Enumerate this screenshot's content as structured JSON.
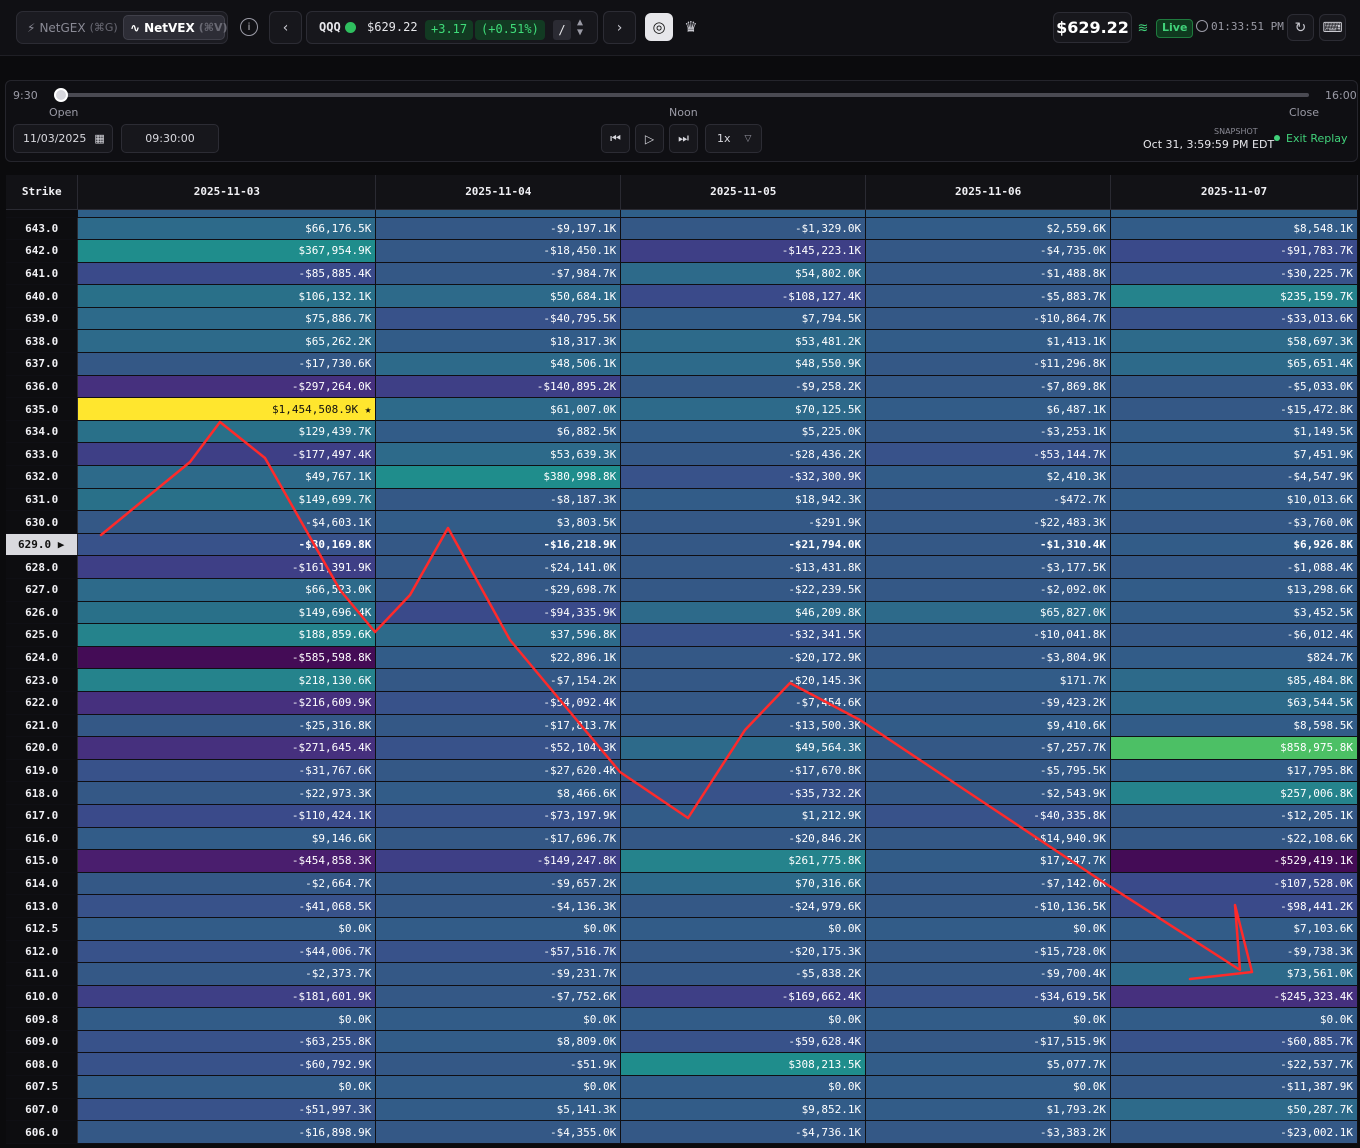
{
  "header": {
    "netgex_label": "NetGEX",
    "netgex_shortcut": "(⌘G)",
    "netvex_label": "NetVEX",
    "netvex_shortcut": "(⌘V)",
    "ticker": {
      "symbol": "QQQ",
      "price": "$629.22",
      "change": "+3.17",
      "change_pct": "(+0.51%)",
      "slash": "/"
    },
    "live_price": "$629.22",
    "live_label": "Live",
    "time": "01:33:51 PM",
    "colors": {
      "positive": "#3fdc79",
      "live": "#41d17a",
      "highlight": "#ffe62e"
    }
  },
  "replay": {
    "start_time": "9:30",
    "end_time": "16:00",
    "open_label": "Open",
    "noon_label": "Noon",
    "close_label": "Close",
    "date": "11/03/2025",
    "time_value": "09:30:00",
    "speed": "1x",
    "snapshot_label": "SNAPSHOT",
    "snapshot_time": "Oct 31, 3:59:59 PM EDT",
    "exit_label": "Exit Replay",
    "progress": 0
  },
  "table": {
    "strike_header": "Strike",
    "columns": [
      "2025-11-03",
      "2025-11-04",
      "2025-11-05",
      "2025-11-06",
      "2025-11-07"
    ],
    "current_strike": "629.0",
    "rows": [
      {
        "strike": "643.0",
        "cells": [
          "$66,176.5K",
          "-$9,197.1K",
          "-$1,329.0K",
          "$2,559.6K",
          "$8,548.1K"
        ]
      },
      {
        "strike": "642.0",
        "cells": [
          "$367,954.9K",
          "-$18,450.1K",
          "-$145,223.1K",
          "-$4,735.0K",
          "-$91,783.7K"
        ]
      },
      {
        "strike": "641.0",
        "cells": [
          "-$85,885.4K",
          "-$7,984.7K",
          "$54,802.0K",
          "-$1,488.8K",
          "-$30,225.7K"
        ]
      },
      {
        "strike": "640.0",
        "cells": [
          "$106,132.1K",
          "$50,684.1K",
          "-$108,127.4K",
          "-$5,883.7K",
          "$235,159.7K"
        ]
      },
      {
        "strike": "639.0",
        "cells": [
          "$75,886.7K",
          "-$40,795.5K",
          "$7,794.5K",
          "-$10,864.7K",
          "-$33,013.6K"
        ]
      },
      {
        "strike": "638.0",
        "cells": [
          "$65,262.2K",
          "$18,317.3K",
          "$53,481.2K",
          "$1,413.1K",
          "$58,697.3K"
        ]
      },
      {
        "strike": "637.0",
        "cells": [
          "-$17,730.6K",
          "$48,506.1K",
          "$48,550.9K",
          "-$11,296.8K",
          "$65,651.4K"
        ]
      },
      {
        "strike": "636.0",
        "cells": [
          "-$297,264.0K",
          "-$140,895.2K",
          "-$9,258.2K",
          "-$7,869.8K",
          "-$5,033.0K"
        ]
      },
      {
        "strike": "635.0",
        "cells": [
          "$1,454,508.9K ★",
          "$61,007.0K",
          "$70,125.5K",
          "$6,487.1K",
          "-$15,472.8K"
        ]
      },
      {
        "strike": "634.0",
        "cells": [
          "$129,439.7K",
          "$6,882.5K",
          "$5,225.0K",
          "-$3,253.1K",
          "$1,149.5K"
        ]
      },
      {
        "strike": "633.0",
        "cells": [
          "-$177,497.4K",
          "$53,639.3K",
          "-$28,436.2K",
          "-$53,144.7K",
          "$7,451.9K"
        ]
      },
      {
        "strike": "632.0",
        "cells": [
          "$49,767.1K",
          "$380,998.8K",
          "-$32,300.9K",
          "$2,410.3K",
          "-$4,547.9K"
        ]
      },
      {
        "strike": "631.0",
        "cells": [
          "$149,699.7K",
          "-$8,187.3K",
          "$18,942.3K",
          "-$472.7K",
          "$10,013.6K"
        ]
      },
      {
        "strike": "630.0",
        "cells": [
          "-$4,603.1K",
          "$3,803.5K",
          "-$291.9K",
          "-$22,483.3K",
          "-$3,760.0K"
        ]
      },
      {
        "strike": "629.0",
        "cells": [
          "-$30,169.8K",
          "-$16,218.9K",
          "-$21,794.0K",
          "-$1,310.4K",
          "$6,926.8K"
        ]
      },
      {
        "strike": "628.0",
        "cells": [
          "-$161,391.9K",
          "-$24,141.0K",
          "-$13,431.8K",
          "-$3,177.5K",
          "-$1,088.4K"
        ]
      },
      {
        "strike": "627.0",
        "cells": [
          "$66,523.0K",
          "-$29,698.7K",
          "-$22,239.5K",
          "-$2,092.0K",
          "$13,298.6K"
        ]
      },
      {
        "strike": "626.0",
        "cells": [
          "$149,696.4K",
          "-$94,335.9K",
          "$46,209.8K",
          "$65,827.0K",
          "$3,452.5K"
        ]
      },
      {
        "strike": "625.0",
        "cells": [
          "$188,859.6K",
          "$37,596.8K",
          "-$32,341.5K",
          "-$10,041.8K",
          "-$6,012.4K"
        ]
      },
      {
        "strike": "624.0",
        "cells": [
          "-$585,598.8K",
          "$22,896.1K",
          "-$20,172.9K",
          "-$3,804.9K",
          "$824.7K"
        ]
      },
      {
        "strike": "623.0",
        "cells": [
          "$218,130.6K",
          "-$7,154.2K",
          "-$20,145.3K",
          "$171.7K",
          "$85,484.8K"
        ]
      },
      {
        "strike": "622.0",
        "cells": [
          "-$216,609.9K",
          "-$54,092.4K",
          "-$7,454.6K",
          "-$9,423.2K",
          "$63,544.5K"
        ]
      },
      {
        "strike": "621.0",
        "cells": [
          "-$25,316.8K",
          "-$17,813.7K",
          "-$13,500.3K",
          "$9,410.6K",
          "$8,598.5K"
        ]
      },
      {
        "strike": "620.0",
        "cells": [
          "-$271,645.4K",
          "-$52,104.3K",
          "$49,564.3K",
          "-$7,257.7K",
          "$858,975.8K"
        ]
      },
      {
        "strike": "619.0",
        "cells": [
          "-$31,767.6K",
          "-$27,620.4K",
          "-$17,670.8K",
          "-$5,795.5K",
          "$17,795.8K"
        ]
      },
      {
        "strike": "618.0",
        "cells": [
          "-$22,973.3K",
          "$8,466.6K",
          "-$35,732.2K",
          "-$2,543.9K",
          "$257,006.8K"
        ]
      },
      {
        "strike": "617.0",
        "cells": [
          "-$110,424.1K",
          "-$73,197.9K",
          "$1,212.9K",
          "-$40,335.8K",
          "-$12,205.1K"
        ]
      },
      {
        "strike": "616.0",
        "cells": [
          "$9,146.6K",
          "-$17,696.7K",
          "-$20,846.2K",
          "-$14,940.9K",
          "-$22,108.6K"
        ]
      },
      {
        "strike": "615.0",
        "cells": [
          "-$454,858.3K",
          "-$149,247.8K",
          "$261,775.8K",
          "$17,247.7K",
          "-$529,419.1K"
        ]
      },
      {
        "strike": "614.0",
        "cells": [
          "-$2,664.7K",
          "-$9,657.2K",
          "$70,316.6K",
          "-$7,142.0K",
          "-$107,528.0K"
        ]
      },
      {
        "strike": "613.0",
        "cells": [
          "-$41,068.5K",
          "-$4,136.3K",
          "-$24,979.6K",
          "-$10,136.5K",
          "-$98,441.2K"
        ]
      },
      {
        "strike": "612.5",
        "cells": [
          "$0.0K",
          "$0.0K",
          "$0.0K",
          "$0.0K",
          "$7,103.6K"
        ]
      },
      {
        "strike": "612.0",
        "cells": [
          "-$44,006.7K",
          "-$57,516.7K",
          "-$20,175.3K",
          "-$15,728.0K",
          "-$9,738.3K"
        ]
      },
      {
        "strike": "611.0",
        "cells": [
          "-$2,373.7K",
          "-$9,231.7K",
          "-$5,838.2K",
          "-$9,700.4K",
          "$73,561.0K"
        ]
      },
      {
        "strike": "610.0",
        "cells": [
          "-$181,601.9K",
          "-$7,752.6K",
          "-$169,662.4K",
          "-$34,619.5K",
          "-$245,323.4K"
        ]
      },
      {
        "strike": "609.8",
        "cells": [
          "$0.0K",
          "$0.0K",
          "$0.0K",
          "$0.0K",
          "$0.0K"
        ]
      },
      {
        "strike": "609.0",
        "cells": [
          "-$63,255.8K",
          "$8,809.0K",
          "-$59,628.4K",
          "-$17,515.9K",
          "-$60,885.7K"
        ]
      },
      {
        "strike": "608.0",
        "cells": [
          "-$60,792.9K",
          "-$51.9K",
          "$308,213.5K",
          "$5,077.7K",
          "-$22,537.7K"
        ]
      },
      {
        "strike": "607.5",
        "cells": [
          "$0.0K",
          "$0.0K",
          "$0.0K",
          "$0.0K",
          "-$11,387.9K"
        ]
      },
      {
        "strike": "607.0",
        "cells": [
          "-$51,997.3K",
          "$5,141.3K",
          "$9,852.1K",
          "$1,793.2K",
          "$50,287.7K"
        ]
      },
      {
        "strike": "606.0",
        "cells": [
          "-$16,898.9K",
          "-$4,355.0K",
          "-$4,736.1K",
          "-$3,383.2K",
          "-$23,002.1K"
        ]
      }
    ]
  }
}
